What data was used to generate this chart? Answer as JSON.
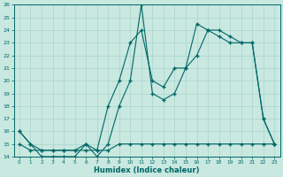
{
  "xlabel": "Humidex (Indice chaleur)",
  "bg_color": "#c8e8e0",
  "line_color": "#006666",
  "grid_color": "#aad4cc",
  "xlim": [
    -0.5,
    23.5
  ],
  "ylim": [
    14,
    26
  ],
  "xticks": [
    0,
    1,
    2,
    3,
    4,
    5,
    6,
    7,
    8,
    9,
    10,
    11,
    12,
    13,
    14,
    15,
    16,
    17,
    18,
    19,
    20,
    21,
    22,
    23
  ],
  "yticks": [
    14,
    15,
    16,
    17,
    18,
    19,
    20,
    21,
    22,
    23,
    24,
    25,
    26
  ],
  "series1_x": [
    0,
    1,
    2,
    3,
    4,
    5,
    6,
    7,
    8,
    9,
    10,
    11,
    12,
    13,
    14,
    15,
    16,
    17,
    18,
    19,
    20,
    21,
    22,
    23
  ],
  "series1_y": [
    16,
    15,
    14,
    14,
    14,
    14,
    15,
    14,
    15,
    18,
    20,
    26,
    19,
    18.5,
    19,
    21,
    24.5,
    24,
    24,
    23.5,
    23,
    23,
    17,
    15
  ],
  "series2_x": [
    0,
    1,
    2,
    3,
    4,
    5,
    6,
    7,
    8,
    9,
    10,
    11,
    12,
    13,
    14,
    15,
    16,
    17,
    18,
    19,
    20,
    21,
    22,
    23
  ],
  "series2_y": [
    15,
    14.5,
    14.5,
    14.5,
    14.5,
    14.5,
    14.5,
    14.5,
    14.5,
    15,
    15,
    15,
    15,
    15,
    15,
    15,
    15,
    15,
    15,
    15,
    15,
    15,
    15,
    15
  ],
  "series3_x": [
    0,
    1,
    2,
    3,
    4,
    5,
    6,
    7,
    8,
    9,
    10,
    11,
    12,
    13,
    14,
    15,
    16,
    17,
    18,
    19,
    20,
    21,
    22,
    23
  ],
  "series3_y": [
    16,
    15,
    14.5,
    14.5,
    14.5,
    14.5,
    15,
    14.5,
    18,
    20,
    23,
    24,
    20,
    19.5,
    21,
    21,
    22,
    24,
    23.5,
    23,
    23,
    23,
    17,
    15
  ]
}
